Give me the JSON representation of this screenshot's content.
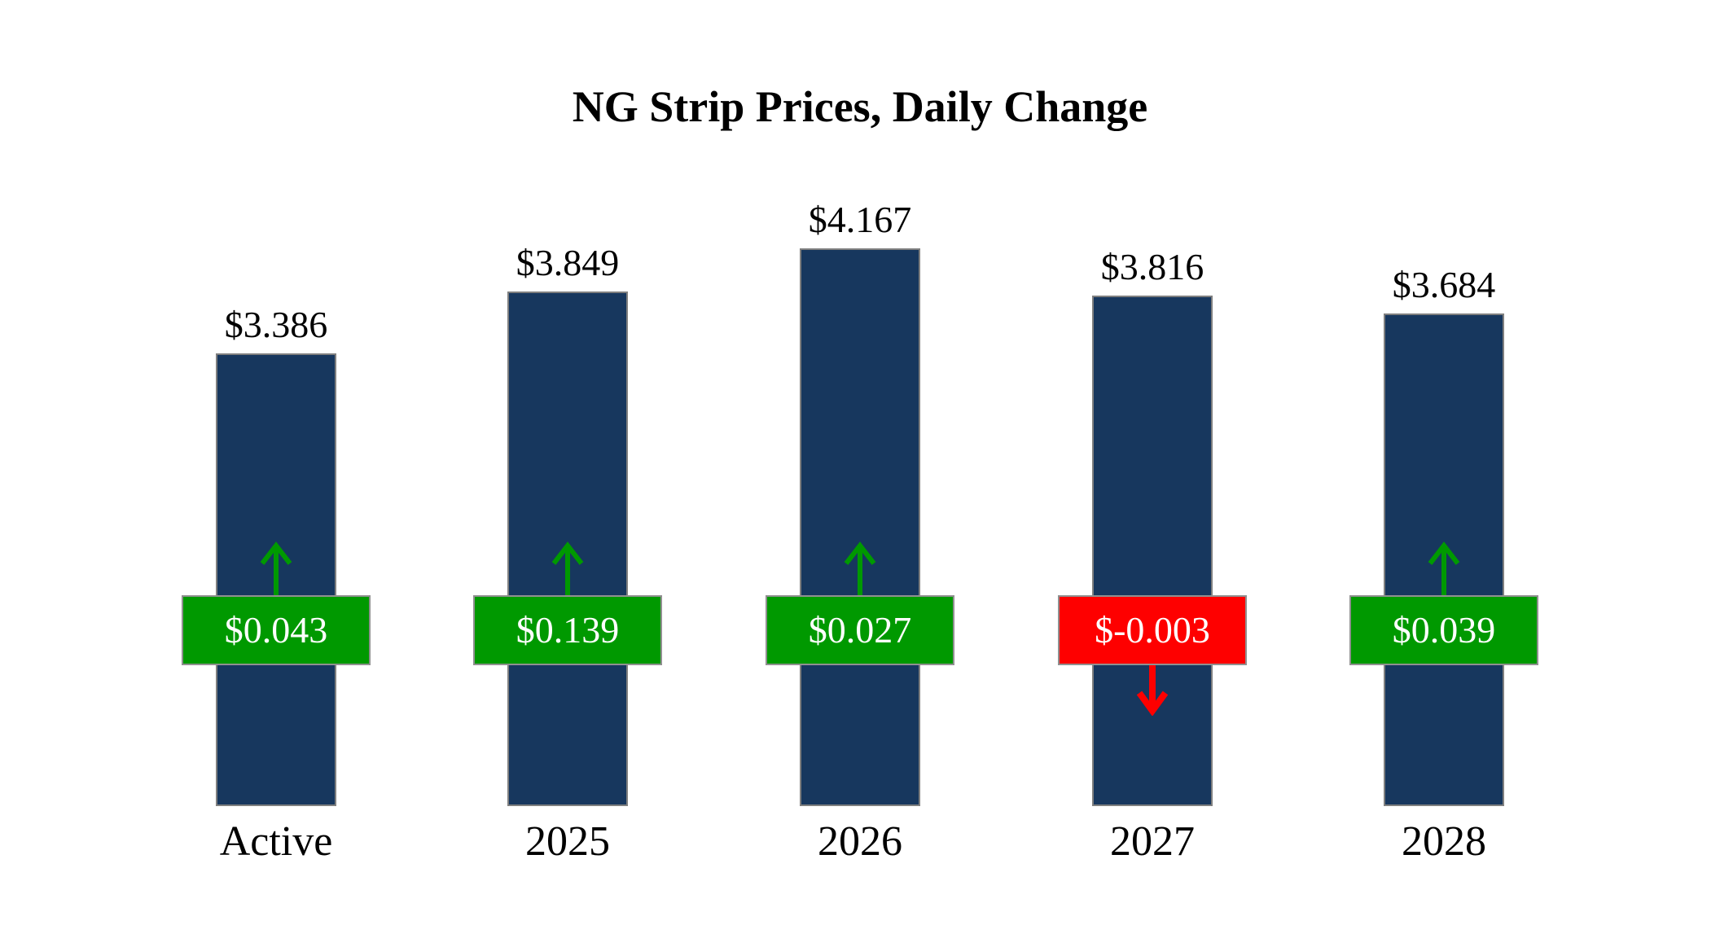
{
  "chart_data": {
    "type": "bar",
    "title": "NG Strip Prices, Daily Change",
    "categories": [
      "Active",
      "2025",
      "2026",
      "2027",
      "2028"
    ],
    "series": [
      {
        "name": "Strip Price ($)",
        "values": [
          3.386,
          3.849,
          4.167,
          3.816,
          3.684
        ]
      },
      {
        "name": "Daily Change ($)",
        "values": [
          0.043,
          0.139,
          0.027,
          -0.003,
          0.039
        ]
      }
    ],
    "value_labels": [
      "$3.386",
      "$3.849",
      "$4.167",
      "$3.816",
      "$3.684"
    ],
    "change_labels": [
      "$0.043",
      "$0.139",
      "$0.027",
      "$-0.003",
      "$0.039"
    ],
    "ylim": [
      0,
      4.5
    ],
    "grid": false,
    "legend": false,
    "colors": {
      "bar": "#17375E",
      "bar_border": "#7F7F7F",
      "positive": "#009900",
      "negative": "#FE0000",
      "box_border": "#909090",
      "change_text": "#FFFFFF"
    }
  }
}
